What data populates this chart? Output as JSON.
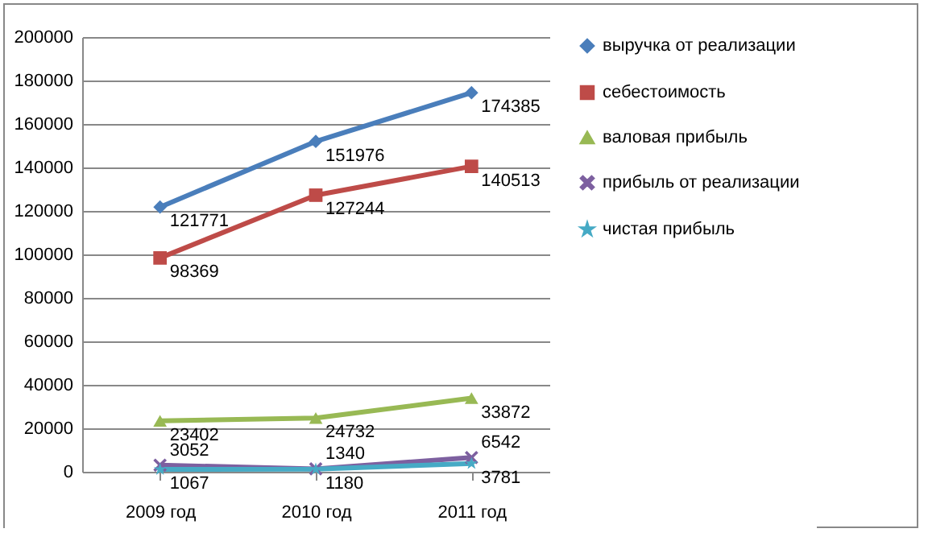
{
  "chart_data": {
    "type": "line",
    "categories": [
      "2009 год",
      "2010 год",
      "2011 год"
    ],
    "series": [
      {
        "name": "выручка от реализации",
        "color": "#4a7ebb",
        "marker": "diamond",
        "values": [
          121771,
          151976,
          174385
        ]
      },
      {
        "name": "себестоимость",
        "color": "#be4b48",
        "marker": "square",
        "values": [
          98369,
          127244,
          140513
        ]
      },
      {
        "name": "валовая прибыль",
        "color": "#98b954",
        "marker": "triangle",
        "values": [
          23402,
          24732,
          33872
        ]
      },
      {
        "name": "прибыль от реализации",
        "color": "#7d60a0",
        "marker": "cross",
        "values": [
          3052,
          1340,
          6542
        ]
      },
      {
        "name": "чистая прибыль",
        "color": "#46aac5",
        "marker": "star",
        "values": [
          1067,
          1180,
          3781
        ]
      }
    ],
    "ylim": [
      0,
      200000
    ],
    "yticks": [
      0,
      20000,
      40000,
      60000,
      80000,
      100000,
      120000,
      140000,
      160000,
      180000,
      200000
    ],
    "grid": "y",
    "legend": "right",
    "data_labels": true
  }
}
